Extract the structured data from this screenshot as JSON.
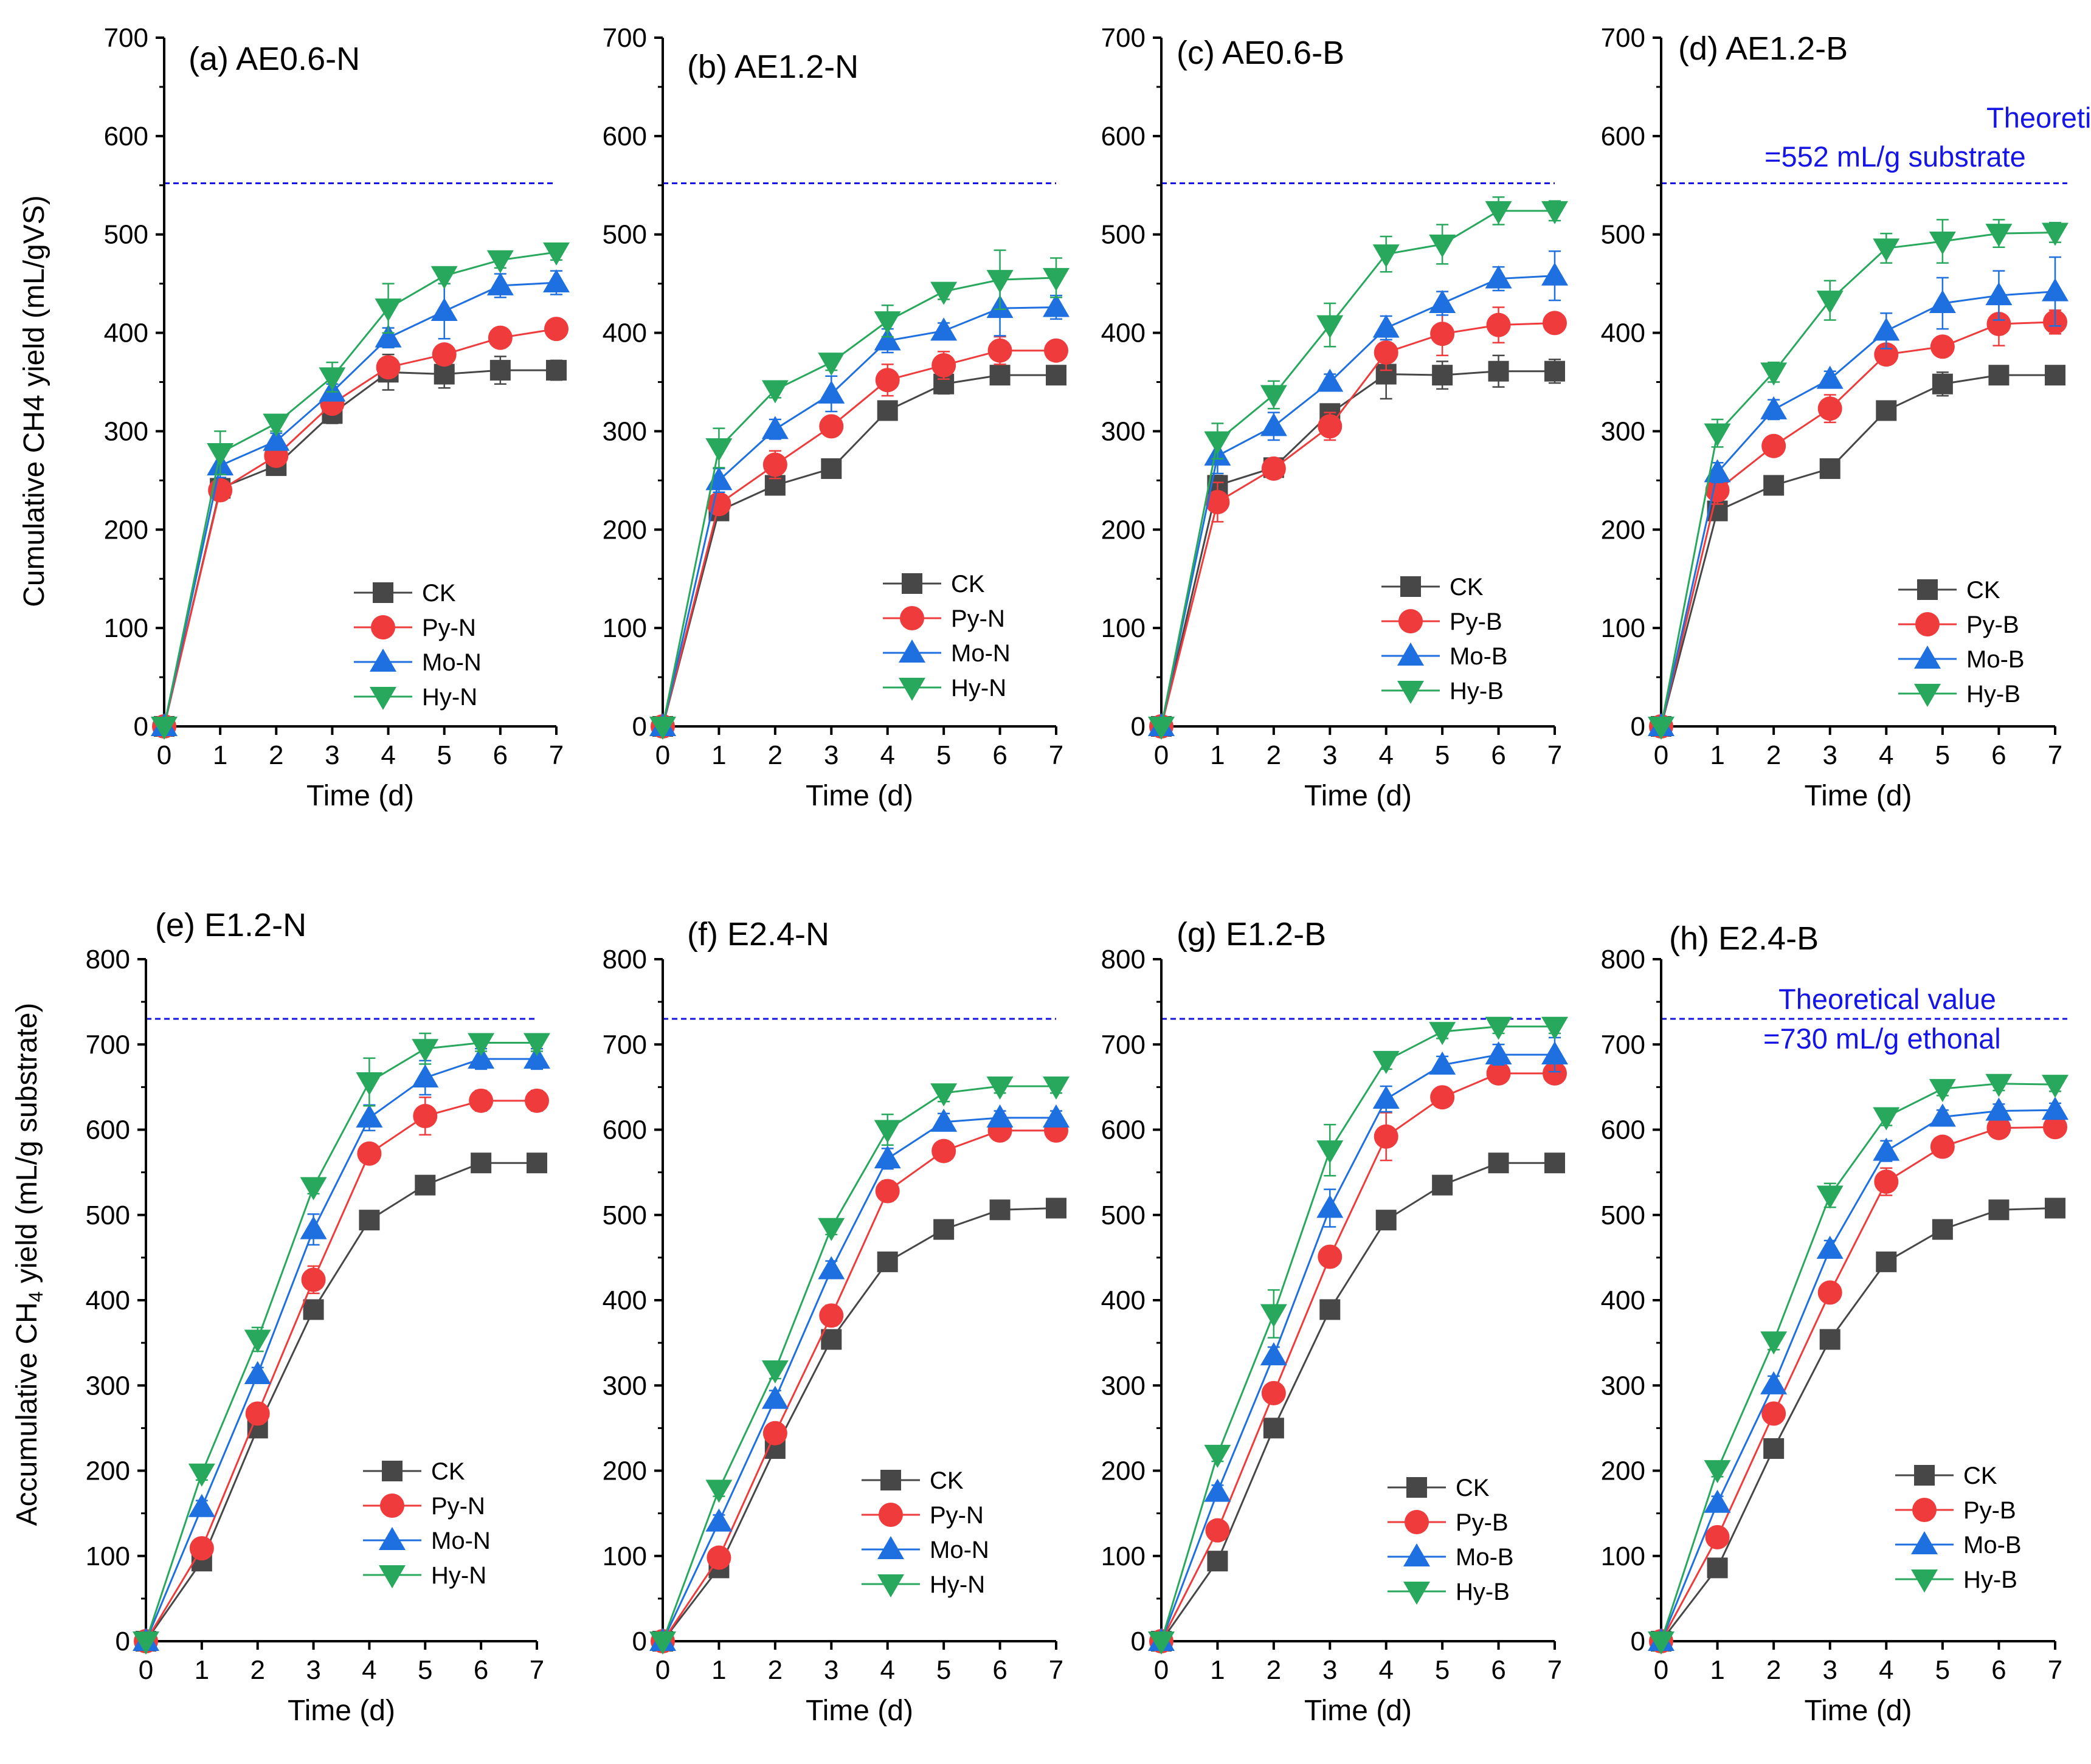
{
  "colors": {
    "CK": "#474747",
    "Py": "#ef3b3b",
    "Mo": "#1e6fe0",
    "Hy": "#28a85c",
    "theory": "#1515e6",
    "axis": "#000000"
  },
  "shared_ylabels": {
    "top": "Cumulative CH4 yield (mL/gVS)",
    "bottom_main": "Accumulative CH",
    "bottom_sub": "4",
    "bottom_tail": " yield (mL/g substrate)"
  },
  "theory": [
    {
      "line1": "Theoretical value",
      "line2": "=552 mL/g substrate"
    },
    {
      "line1": "Theoretical value",
      "line2": "=730 mL/g ethonal"
    }
  ],
  "chart_data": [
    {
      "type": "line",
      "title": "(a) AE0.6-N",
      "xlabel": "Time (d)",
      "ylabel": "Cumulative CH4 yield (mL/gVS)",
      "xlim": [
        0,
        7
      ],
      "ylim": [
        0,
        700
      ],
      "x": [
        0,
        1,
        2,
        3,
        4,
        5,
        6,
        7
      ],
      "xticks": [
        "0",
        "1",
        "2",
        "3",
        "4",
        "5",
        "6",
        "7"
      ],
      "yticks": [
        "0",
        "100",
        "200",
        "300",
        "400",
        "500",
        "600",
        "700"
      ],
      "theory_line": 552,
      "legend_position": "bottom-right",
      "series": [
        {
          "name": "CK",
          "key": "CK",
          "marker": "square",
          "values": [
            0,
            242,
            265,
            318,
            360,
            358,
            362,
            362
          ],
          "errors": [
            0,
            8,
            6,
            10,
            18,
            14,
            14,
            10
          ]
        },
        {
          "name": "Py-N",
          "key": "Py",
          "marker": "circle",
          "values": [
            0,
            240,
            275,
            328,
            365,
            378,
            395,
            404
          ],
          "errors": [
            0,
            10,
            8,
            8,
            10,
            10,
            10,
            10
          ]
        },
        {
          "name": "Mo-N",
          "key": "Mo",
          "marker": "triangle-up",
          "values": [
            0,
            265,
            290,
            340,
            395,
            422,
            448,
            451
          ],
          "errors": [
            0,
            12,
            8,
            8,
            10,
            28,
            12,
            12
          ]
        },
        {
          "name": "Hy-N",
          "key": "Hy",
          "marker": "triangle-down",
          "values": [
            0,
            278,
            308,
            355,
            425,
            458,
            474,
            482
          ],
          "errors": [
            0,
            22,
            8,
            15,
            25,
            8,
            8,
            8
          ]
        }
      ]
    },
    {
      "type": "line",
      "title": "(b) AE1.2-N",
      "xlabel": "Time (d)",
      "ylabel": "",
      "xlim": [
        0,
        7
      ],
      "ylim": [
        0,
        700
      ],
      "x": [
        0,
        1,
        2,
        3,
        4,
        5,
        6,
        7
      ],
      "xticks": [
        "0",
        "1",
        "2",
        "3",
        "4",
        "5",
        "6",
        "7"
      ],
      "yticks": [
        "0",
        "100",
        "200",
        "300",
        "400",
        "500",
        "600",
        "700"
      ],
      "theory_line": 552,
      "legend_position": "bottom-right",
      "series": [
        {
          "name": "CK",
          "key": "CK",
          "marker": "square",
          "values": [
            0,
            219,
            245,
            262,
            321,
            348,
            357,
            357
          ],
          "errors": [
            0,
            6,
            6,
            6,
            6,
            10,
            6,
            6
          ]
        },
        {
          "name": "Py-N",
          "key": "Py",
          "marker": "circle",
          "values": [
            0,
            226,
            266,
            305,
            352,
            367,
            382,
            382
          ],
          "errors": [
            0,
            8,
            14,
            8,
            16,
            14,
            14,
            8
          ]
        },
        {
          "name": "Mo-N",
          "key": "Mo",
          "marker": "triangle-up",
          "values": [
            0,
            250,
            302,
            338,
            392,
            402,
            425,
            426
          ],
          "errors": [
            0,
            12,
            10,
            18,
            12,
            8,
            28,
            12
          ]
        },
        {
          "name": "Hy-N",
          "key": "Hy",
          "marker": "triangle-down",
          "values": [
            0,
            283,
            342,
            370,
            412,
            442,
            454,
            456
          ],
          "errors": [
            0,
            20,
            8,
            8,
            16,
            8,
            30,
            20
          ]
        }
      ]
    },
    {
      "type": "line",
      "title": "(c) AE0.6-B",
      "xlabel": "Time (d)",
      "ylabel": "",
      "xlim": [
        0,
        7
      ],
      "ylim": [
        0,
        700
      ],
      "x": [
        0,
        1,
        2,
        3,
        4,
        5,
        6,
        7
      ],
      "xticks": [
        "0",
        "1",
        "2",
        "3",
        "4",
        "5",
        "6",
        "7"
      ],
      "yticks": [
        "0",
        "100",
        "200",
        "300",
        "400",
        "500",
        "600",
        "700"
      ],
      "theory_line": 552,
      "legend_position": "bottom-right",
      "series": [
        {
          "name": "CK",
          "key": "CK",
          "marker": "square",
          "values": [
            0,
            245,
            263,
            318,
            358,
            357,
            361,
            361
          ],
          "errors": [
            0,
            10,
            8,
            8,
            25,
            14,
            16,
            12
          ]
        },
        {
          "name": "Py-B",
          "key": "Py",
          "marker": "circle",
          "values": [
            0,
            228,
            262,
            305,
            380,
            399,
            408,
            410
          ],
          "errors": [
            0,
            20,
            8,
            14,
            18,
            22,
            18,
            8
          ]
        },
        {
          "name": "Mo-B",
          "key": "Mo",
          "marker": "triangle-up",
          "values": [
            0,
            275,
            305,
            350,
            405,
            430,
            455,
            458
          ],
          "errors": [
            0,
            18,
            14,
            8,
            12,
            12,
            12,
            25
          ]
        },
        {
          "name": "Hy-B",
          "key": "Hy",
          "marker": "triangle-down",
          "values": [
            0,
            290,
            337,
            408,
            480,
            490,
            524,
            524
          ],
          "errors": [
            0,
            18,
            14,
            22,
            18,
            20,
            14,
            10
          ]
        }
      ]
    },
    {
      "type": "line",
      "title": "(d) AE1.2-B",
      "xlabel": "Time (d)",
      "ylabel": "",
      "xlim": [
        0,
        7
      ],
      "ylim": [
        0,
        700
      ],
      "x": [
        0,
        1,
        2,
        3,
        4,
        5,
        6,
        7
      ],
      "xticks": [
        "0",
        "1",
        "2",
        "3",
        "4",
        "5",
        "6",
        "7"
      ],
      "yticks": [
        "0",
        "100",
        "200",
        "300",
        "400",
        "500",
        "600",
        "700"
      ],
      "theory_line": 552,
      "legend_position": "bottom-right",
      "series": [
        {
          "name": "CK",
          "key": "CK",
          "marker": "square",
          "values": [
            0,
            219,
            245,
            262,
            321,
            348,
            357,
            357
          ],
          "errors": [
            0,
            6,
            6,
            6,
            6,
            12,
            6,
            6
          ]
        },
        {
          "name": "Py-B",
          "key": "Py",
          "marker": "circle",
          "values": [
            0,
            240,
            285,
            323,
            378,
            386,
            409,
            411
          ],
          "errors": [
            0,
            14,
            8,
            14,
            10,
            10,
            22,
            12
          ]
        },
        {
          "name": "Mo-B",
          "key": "Mo",
          "marker": "triangle-up",
          "values": [
            0,
            258,
            322,
            353,
            402,
            430,
            438,
            442
          ],
          "errors": [
            0,
            10,
            10,
            8,
            18,
            26,
            25,
            35
          ]
        },
        {
          "name": "Hy-B",
          "key": "Hy",
          "marker": "triangle-down",
          "values": [
            0,
            298,
            360,
            433,
            486,
            493,
            501,
            502
          ],
          "errors": [
            0,
            14,
            10,
            20,
            15,
            22,
            14,
            10
          ]
        }
      ]
    },
    {
      "type": "line",
      "title": "(e) E1.2-N",
      "xlabel": "Time (d)",
      "ylabel": "Accumulative CH4 yield (mL/g substrate)",
      "xlim": [
        0,
        7
      ],
      "ylim": [
        0,
        800
      ],
      "x": [
        0,
        1,
        2,
        3,
        4,
        5,
        6,
        7
      ],
      "xticks": [
        "0",
        "1",
        "2",
        "3",
        "4",
        "5",
        "6",
        "7"
      ],
      "yticks": [
        "0",
        "100",
        "200",
        "300",
        "400",
        "500",
        "600",
        "700",
        "800"
      ],
      "theory_line": 730,
      "legend_position": "bottom-right",
      "series": [
        {
          "name": "CK",
          "key": "CK",
          "marker": "square",
          "values": [
            0,
            94,
            250,
            389,
            494,
            535,
            561,
            561
          ],
          "errors": [
            0,
            6,
            8,
            10,
            8,
            8,
            8,
            8
          ]
        },
        {
          "name": "Py-N",
          "key": "Py",
          "marker": "circle",
          "values": [
            0,
            109,
            267,
            424,
            572,
            616,
            634,
            634
          ],
          "errors": [
            0,
            8,
            12,
            16,
            8,
            22,
            12,
            12
          ]
        },
        {
          "name": "Mo-N",
          "key": "Mo",
          "marker": "triangle-up",
          "values": [
            0,
            157,
            313,
            483,
            614,
            661,
            683,
            683
          ],
          "errors": [
            0,
            8,
            8,
            18,
            15,
            20,
            12,
            12
          ]
        },
        {
          "name": "Hy-N",
          "key": "Hy",
          "marker": "triangle-down",
          "values": [
            0,
            197,
            354,
            533,
            656,
            695,
            702,
            702
          ],
          "errors": [
            0,
            8,
            14,
            8,
            28,
            18,
            10,
            10
          ]
        }
      ]
    },
    {
      "type": "line",
      "title": "(f) E2.4-N",
      "xlabel": "Time (d)",
      "ylabel": "",
      "xlim": [
        0,
        7
      ],
      "ylim": [
        0,
        800
      ],
      "x": [
        0,
        1,
        2,
        3,
        4,
        5,
        6,
        7
      ],
      "xticks": [
        "0",
        "1",
        "2",
        "3",
        "4",
        "5",
        "6",
        "7"
      ],
      "yticks": [
        "0",
        "100",
        "200",
        "300",
        "400",
        "500",
        "600",
        "700",
        "800"
      ],
      "theory_line": 730,
      "legend_position": "bottom-right",
      "series": [
        {
          "name": "CK",
          "key": "CK",
          "marker": "square",
          "values": [
            0,
            86,
            226,
            354,
            445,
            483,
            506,
            508
          ],
          "errors": [
            0,
            6,
            8,
            8,
            8,
            8,
            8,
            8
          ]
        },
        {
          "name": "Py-N",
          "key": "Py",
          "marker": "circle",
          "values": [
            0,
            98,
            244,
            382,
            528,
            575,
            599,
            599
          ],
          "errors": [
            0,
            8,
            10,
            12,
            12,
            10,
            10,
            10
          ]
        },
        {
          "name": "Mo-N",
          "key": "Mo",
          "marker": "triangle-up",
          "values": [
            0,
            140,
            284,
            436,
            566,
            609,
            614,
            614
          ],
          "errors": [
            0,
            8,
            10,
            10,
            12,
            10,
            8,
            8
          ]
        },
        {
          "name": "Hy-N",
          "key": "Hy",
          "marker": "triangle-down",
          "values": [
            0,
            178,
            318,
            485,
            600,
            643,
            651,
            651
          ],
          "errors": [
            0,
            8,
            10,
            8,
            18,
            10,
            8,
            8
          ]
        }
      ]
    },
    {
      "type": "line",
      "title": "(g) E1.2-B",
      "xlabel": "Time (d)",
      "ylabel": "",
      "xlim": [
        0,
        7
      ],
      "ylim": [
        0,
        800
      ],
      "x": [
        0,
        1,
        2,
        3,
        4,
        5,
        6,
        7
      ],
      "xticks": [
        "0",
        "1",
        "2",
        "3",
        "4",
        "5",
        "6",
        "7"
      ],
      "yticks": [
        "0",
        "100",
        "200",
        "300",
        "400",
        "500",
        "600",
        "700",
        "800"
      ],
      "theory_line": 730,
      "legend_position": "bottom-right",
      "series": [
        {
          "name": "CK",
          "key": "CK",
          "marker": "square",
          "values": [
            0,
            94,
            250,
            389,
            494,
            535,
            561,
            561
          ],
          "errors": [
            0,
            6,
            8,
            10,
            8,
            8,
            8,
            8
          ]
        },
        {
          "name": "Py-B",
          "key": "Py",
          "marker": "circle",
          "values": [
            0,
            130,
            291,
            451,
            592,
            638,
            666,
            666
          ],
          "errors": [
            0,
            8,
            10,
            10,
            28,
            10,
            10,
            10
          ]
        },
        {
          "name": "Mo-B",
          "key": "Mo",
          "marker": "triangle-up",
          "values": [
            0,
            175,
            335,
            508,
            636,
            676,
            688,
            688
          ],
          "errors": [
            0,
            8,
            10,
            22,
            15,
            10,
            12,
            20
          ]
        },
        {
          "name": "Hy-B",
          "key": "Hy",
          "marker": "triangle-down",
          "values": [
            0,
            219,
            384,
            576,
            681,
            715,
            721,
            721
          ],
          "errors": [
            0,
            8,
            28,
            30,
            10,
            8,
            8,
            8
          ]
        }
      ]
    },
    {
      "type": "line",
      "title": "(h) E2.4-B",
      "xlabel": "Time (d)",
      "ylabel": "",
      "xlim": [
        0,
        7
      ],
      "ylim": [
        0,
        800
      ],
      "x": [
        0,
        1,
        2,
        3,
        4,
        5,
        6,
        7
      ],
      "xticks": [
        "0",
        "1",
        "2",
        "3",
        "4",
        "5",
        "6",
        "7"
      ],
      "yticks": [
        "0",
        "100",
        "200",
        "300",
        "400",
        "500",
        "600",
        "700",
        "800"
      ],
      "theory_line": 730,
      "legend_position": "bottom-right",
      "series": [
        {
          "name": "CK",
          "key": "CK",
          "marker": "square",
          "values": [
            0,
            86,
            226,
            354,
            445,
            483,
            506,
            508
          ],
          "errors": [
            0,
            6,
            8,
            8,
            8,
            8,
            8,
            8
          ]
        },
        {
          "name": "Py-B",
          "key": "Py",
          "marker": "circle",
          "values": [
            0,
            122,
            267,
            409,
            539,
            580,
            602,
            603
          ],
          "errors": [
            0,
            8,
            10,
            10,
            16,
            10,
            10,
            10
          ]
        },
        {
          "name": "Mo-B",
          "key": "Mo",
          "marker": "triangle-up",
          "values": [
            0,
            162,
            301,
            460,
            575,
            615,
            622,
            623
          ],
          "errors": [
            0,
            8,
            10,
            10,
            12,
            8,
            8,
            8
          ]
        },
        {
          "name": "Hy-B",
          "key": "Hy",
          "marker": "triangle-down",
          "values": [
            0,
            201,
            352,
            523,
            615,
            648,
            654,
            653
          ],
          "errors": [
            0,
            8,
            10,
            14,
            10,
            8,
            8,
            8
          ]
        }
      ]
    }
  ]
}
